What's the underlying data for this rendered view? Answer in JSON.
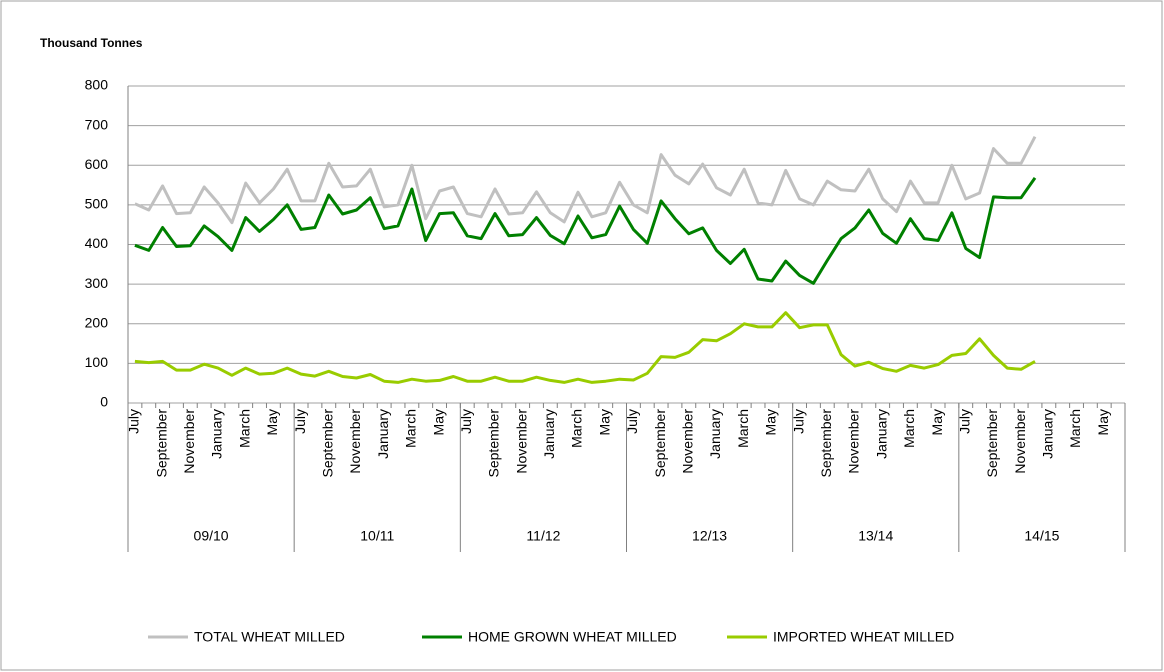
{
  "chart_data": {
    "type": "line",
    "y_axis_title": "Thousand Tonnes",
    "categories": [
      "July",
      null,
      "September",
      null,
      "November",
      null,
      "January",
      null,
      "March",
      null,
      "May",
      null,
      "July",
      null,
      "September",
      null,
      "November",
      null,
      "January",
      null,
      "March",
      null,
      "May",
      null,
      "July",
      null,
      "September",
      null,
      "November",
      null,
      "January",
      null,
      "March",
      null,
      "May",
      null,
      "July",
      null,
      "September",
      null,
      "November",
      null,
      "January",
      null,
      "March",
      null,
      "May",
      null,
      "July",
      null,
      "September",
      null,
      "November",
      null,
      "January",
      null,
      "March",
      null,
      "May",
      null,
      "July",
      null,
      "September",
      null,
      "November",
      null,
      "January",
      null,
      "March",
      null,
      "May",
      null
    ],
    "groups": [
      "09/10",
      "10/11",
      "11/12",
      "12/13",
      "13/14",
      "14/15"
    ],
    "ylim": [
      0,
      800
    ],
    "yticks": [
      0,
      100,
      200,
      300,
      400,
      500,
      600,
      700,
      800
    ],
    "grid": true,
    "legend": "bottom",
    "series": [
      {
        "name": "TOTAL WHEAT MILLED",
        "color": "#c0c0c0",
        "values": [
          503,
          487,
          548,
          478,
          480,
          545,
          505,
          455,
          555,
          505,
          540,
          590,
          510,
          510,
          605,
          545,
          548,
          590,
          495,
          500,
          600,
          465,
          535,
          545,
          478,
          470,
          540,
          477,
          480,
          533,
          480,
          457,
          532,
          470,
          480,
          557,
          500,
          480,
          627,
          575,
          553,
          603,
          543,
          525,
          590,
          505,
          500,
          587,
          515,
          500,
          560,
          538,
          535,
          590,
          515,
          483,
          560,
          505,
          505,
          600,
          515,
          530,
          642,
          605,
          605,
          672,
          null,
          null,
          null,
          null,
          null,
          null
        ]
      },
      {
        "name": "HOME GROWN WHEAT MILLED",
        "color": "#008000",
        "values": [
          398,
          385,
          443,
          395,
          397,
          447,
          420,
          385,
          468,
          433,
          463,
          500,
          438,
          443,
          525,
          477,
          487,
          518,
          440,
          447,
          540,
          410,
          478,
          480,
          422,
          415,
          478,
          422,
          425,
          468,
          423,
          402,
          472,
          417,
          425,
          497,
          438,
          403,
          510,
          465,
          427,
          442,
          385,
          352,
          388,
          313,
          308,
          358,
          322,
          302,
          360,
          415,
          442,
          487,
          428,
          403,
          465,
          415,
          410,
          480,
          390,
          367,
          520,
          518,
          518,
          568,
          null,
          null,
          null,
          null,
          null,
          null
        ]
      },
      {
        "name": "IMPORTED WHEAT MILLED",
        "color": "#99cc00",
        "values": [
          105,
          102,
          105,
          83,
          83,
          98,
          88,
          70,
          88,
          73,
          75,
          88,
          73,
          68,
          80,
          67,
          63,
          72,
          55,
          52,
          60,
          55,
          57,
          67,
          55,
          55,
          65,
          55,
          55,
          65,
          57,
          52,
          60,
          52,
          55,
          60,
          58,
          75,
          117,
          115,
          128,
          160,
          157,
          175,
          200,
          192,
          192,
          228,
          190,
          197,
          197,
          122,
          93,
          103,
          87,
          80,
          95,
          88,
          97,
          120,
          125,
          162,
          120,
          88,
          85,
          105,
          null,
          null,
          null,
          null,
          null,
          null
        ]
      }
    ]
  }
}
